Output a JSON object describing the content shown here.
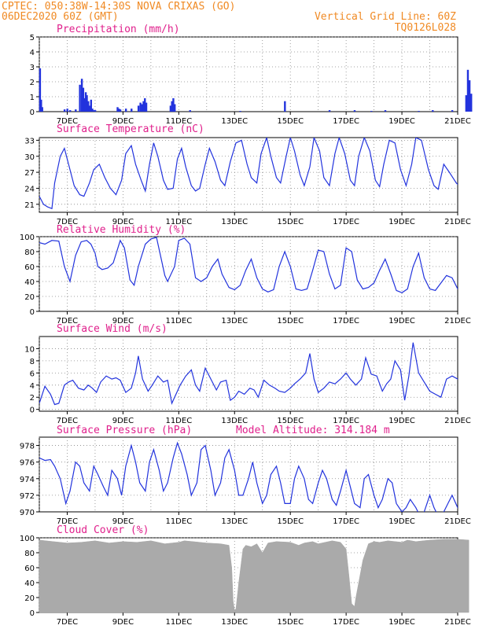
{
  "header": {
    "line1_left": "CPTEC:  050:38W-14:30S  NOVA CRIXAS (GO)",
    "line2_left": "06DEC2020 60Z (GMT)",
    "line1_right": "Vertical Grid Line: 60Z",
    "line2_right": "TQ0126L028"
  },
  "colors": {
    "header": "#f08a24",
    "title": "#e0208c",
    "series": "#2233dd",
    "cloud": "#aaaaaa",
    "grid": "#888888"
  },
  "x_axis": {
    "range": [
      6,
      21
    ],
    "tick_positions": [
      7,
      9,
      11,
      13,
      15,
      17,
      19,
      21
    ],
    "tick_labels": [
      "7DEC",
      "9DEC",
      "11DEC",
      "13DEC",
      "15DEC",
      "17DEC",
      "19DEC",
      "21DEC"
    ]
  },
  "chart_data": [
    {
      "type": "bar",
      "title": "Precipitation (mm/h)",
      "ylim": [
        0,
        5
      ],
      "yticks": [
        0,
        1,
        2,
        3,
        4,
        5
      ],
      "x": [
        6.02,
        6.06,
        6.1,
        6.9,
        7.0,
        7.1,
        7.3,
        7.45,
        7.52,
        7.57,
        7.62,
        7.66,
        7.7,
        7.75,
        7.8,
        7.85,
        7.9,
        7.95,
        8.0,
        8.8,
        8.85,
        8.9,
        9.1,
        9.3,
        9.55,
        9.62,
        9.68,
        9.73,
        9.78,
        9.83,
        10.7,
        10.75,
        10.8,
        10.85,
        11.4,
        13.2,
        14.8,
        16.4,
        17.3,
        17.9,
        18.4,
        19.6,
        20.1,
        20.8,
        21.3,
        21.36,
        21.42,
        21.48
      ],
      "values": [
        2.9,
        0.8,
        0.3,
        0.15,
        0.2,
        0.1,
        0.15,
        1.8,
        2.2,
        1.6,
        0.9,
        1.3,
        1.1,
        0.7,
        0.4,
        0.8,
        0.2,
        0.1,
        0.1,
        0.3,
        0.2,
        0.15,
        0.2,
        0.2,
        0.4,
        0.6,
        0.5,
        0.7,
        0.9,
        0.6,
        0.4,
        0.7,
        0.9,
        0.5,
        0.1,
        0.05,
        0.7,
        0.1,
        0.1,
        0.05,
        0.1,
        0.05,
        0.1,
        0.1,
        1.1,
        2.8,
        2.1,
        1.2
      ]
    },
    {
      "type": "line",
      "title": "Surface Temperature (nC)",
      "ylim": [
        19.5,
        33.5
      ],
      "yticks": [
        21,
        24,
        27,
        30,
        33
      ],
      "x": [
        6.0,
        6.15,
        6.3,
        6.45,
        6.55,
        6.75,
        6.9,
        7.05,
        7.25,
        7.45,
        7.6,
        7.8,
        7.95,
        8.15,
        8.35,
        8.55,
        8.75,
        8.95,
        9.1,
        9.3,
        9.45,
        9.65,
        9.8,
        9.95,
        10.1,
        10.25,
        10.45,
        10.6,
        10.8,
        10.95,
        11.1,
        11.25,
        11.45,
        11.6,
        11.75,
        11.95,
        12.1,
        12.3,
        12.5,
        12.65,
        12.85,
        13.05,
        13.25,
        13.45,
        13.6,
        13.8,
        13.95,
        14.15,
        14.3,
        14.5,
        14.65,
        14.85,
        15.0,
        15.15,
        15.35,
        15.5,
        15.7,
        15.85,
        16.05,
        16.2,
        16.4,
        16.6,
        16.75,
        16.95,
        17.15,
        17.3,
        17.45,
        17.65,
        17.85,
        18.05,
        18.2,
        18.35,
        18.55,
        18.75,
        18.95,
        19.15,
        19.35,
        19.5,
        19.7,
        19.95,
        20.15,
        20.3,
        20.5,
        20.7,
        20.95,
        21.15,
        21.4
      ],
      "values": [
        22.5,
        21.0,
        20.5,
        20.2,
        25.0,
        30.0,
        31.5,
        28.5,
        24.5,
        22.8,
        22.5,
        25.0,
        27.5,
        28.5,
        26.0,
        24.0,
        22.8,
        25.5,
        30.5,
        32.0,
        28.5,
        25.5,
        23.5,
        28.5,
        32.5,
        30.0,
        25.5,
        23.8,
        24.0,
        29.5,
        31.5,
        28.0,
        24.5,
        23.5,
        24.0,
        28.5,
        31.5,
        29.0,
        25.5,
        24.5,
        29.0,
        32.5,
        33.0,
        28.5,
        26.0,
        25.0,
        30.5,
        33.5,
        30.0,
        26.0,
        25.0,
        30.0,
        33.5,
        31.0,
        26.5,
        24.5,
        28.0,
        33.5,
        31.0,
        26.0,
        24.5,
        30.5,
        33.5,
        30.5,
        25.5,
        24.5,
        30.0,
        33.5,
        31.0,
        25.5,
        24.3,
        28.5,
        33.0,
        32.5,
        27.5,
        24.5,
        28.5,
        33.5,
        33.0,
        27.5,
        24.5,
        23.8,
        28.5,
        27.0,
        25.0,
        24.0,
        24.5
      ]
    },
    {
      "type": "line",
      "title": "Relative Humidity (%)",
      "ylim": [
        0,
        100
      ],
      "yticks": [
        0,
        20,
        40,
        60,
        80,
        100
      ],
      "x": [
        6.0,
        6.2,
        6.45,
        6.7,
        6.9,
        7.1,
        7.3,
        7.5,
        7.7,
        7.85,
        8.0,
        8.1,
        8.25,
        8.45,
        8.65,
        8.9,
        9.05,
        9.25,
        9.4,
        9.55,
        9.8,
        10.0,
        10.2,
        10.4,
        10.5,
        10.6,
        10.85,
        11.0,
        11.2,
        11.4,
        11.6,
        11.8,
        12.0,
        12.2,
        12.4,
        12.55,
        12.8,
        13.0,
        13.2,
        13.4,
        13.6,
        13.8,
        14.0,
        14.2,
        14.4,
        14.6,
        14.8,
        15.0,
        15.2,
        15.4,
        15.6,
        15.8,
        16.0,
        16.2,
        16.4,
        16.6,
        16.8,
        17.0,
        17.2,
        17.4,
        17.6,
        17.8,
        18.0,
        18.2,
        18.4,
        18.6,
        18.8,
        19.0,
        19.2,
        19.4,
        19.6,
        19.8,
        20.0,
        20.2,
        20.4,
        20.6,
        20.8,
        21.0,
        21.2,
        21.4
      ],
      "values": [
        92,
        90,
        95,
        94,
        60,
        40,
        75,
        93,
        95,
        90,
        78,
        60,
        56,
        58,
        65,
        95,
        85,
        42,
        35,
        60,
        90,
        97,
        99,
        65,
        48,
        40,
        60,
        95,
        98,
        90,
        45,
        40,
        45,
        60,
        70,
        50,
        32,
        29,
        35,
        55,
        70,
        45,
        30,
        26,
        29,
        60,
        80,
        60,
        30,
        28,
        30,
        55,
        82,
        80,
        50,
        30,
        35,
        85,
        80,
        42,
        30,
        32,
        38,
        55,
        70,
        50,
        28,
        25,
        30,
        60,
        78,
        45,
        30,
        28,
        38,
        48,
        45,
        30,
        28,
        80
      ]
    },
    {
      "type": "line",
      "title": "Surface Wind (m/s)",
      "ylim": [
        -0.3,
        12
      ],
      "yticks": [
        0,
        2,
        4,
        6,
        8,
        10
      ],
      "x": [
        6.0,
        6.2,
        6.4,
        6.55,
        6.7,
        6.9,
        7.05,
        7.2,
        7.4,
        7.6,
        7.75,
        7.9,
        8.05,
        8.2,
        8.4,
        8.6,
        8.75,
        8.9,
        9.1,
        9.3,
        9.45,
        9.55,
        9.7,
        9.9,
        10.05,
        10.25,
        10.45,
        10.6,
        10.75,
        10.9,
        11.05,
        11.25,
        11.45,
        11.6,
        11.75,
        11.95,
        12.15,
        12.35,
        12.5,
        12.7,
        12.85,
        13.0,
        13.15,
        13.35,
        13.55,
        13.7,
        13.85,
        14.05,
        14.25,
        14.45,
        14.6,
        14.8,
        15.0,
        15.15,
        15.35,
        15.55,
        15.7,
        15.85,
        16.0,
        16.2,
        16.4,
        16.6,
        16.8,
        17.0,
        17.15,
        17.35,
        17.55,
        17.7,
        17.9,
        18.1,
        18.3,
        18.45,
        18.6,
        18.75,
        18.95,
        19.1,
        19.25,
        19.4,
        19.6,
        19.8,
        20.0,
        20.2,
        20.4,
        20.6,
        20.8,
        21.0,
        21.2,
        21.4
      ],
      "values": [
        1.0,
        3.8,
        2.5,
        0.8,
        1.0,
        4.0,
        4.5,
        4.8,
        3.5,
        3.2,
        4.0,
        3.5,
        2.8,
        4.5,
        5.5,
        5.0,
        5.2,
        4.8,
        2.8,
        3.5,
        6.0,
        8.8,
        5.0,
        3.0,
        4.0,
        5.5,
        4.5,
        4.8,
        1.0,
        2.5,
        4.0,
        5.5,
        6.5,
        4.0,
        3.0,
        6.8,
        5.0,
        3.2,
        4.5,
        4.8,
        1.5,
        2.0,
        3.0,
        2.5,
        3.5,
        3.2,
        2.0,
        4.8,
        4.0,
        3.5,
        3.0,
        2.8,
        3.5,
        4.2,
        5.0,
        6.0,
        9.2,
        5.0,
        2.8,
        3.5,
        4.5,
        4.2,
        5.0,
        6.0,
        5.0,
        4.0,
        5.0,
        8.5,
        5.8,
        5.5,
        3.0,
        4.2,
        5.0,
        8.0,
        6.5,
        1.5,
        5.5,
        11.0,
        6.0,
        4.5,
        3.0,
        2.5,
        2.0,
        5.0,
        5.5,
        5.0,
        3.5,
        4.0
      ]
    },
    {
      "type": "line",
      "title": "Surface Pressure (hPa)",
      "annotation": "Model Altitude: 314.184 m",
      "ylim": [
        970,
        979
      ],
      "yticks": [
        970,
        972,
        974,
        976,
        978
      ],
      "x": [
        6.0,
        6.2,
        6.4,
        6.55,
        6.75,
        6.95,
        7.1,
        7.3,
        7.45,
        7.6,
        7.8,
        7.95,
        8.1,
        8.3,
        8.45,
        8.6,
        8.8,
        8.95,
        9.1,
        9.3,
        9.45,
        9.6,
        9.8,
        9.95,
        10.1,
        10.3,
        10.45,
        10.6,
        10.8,
        10.95,
        11.1,
        11.3,
        11.45,
        11.65,
        11.8,
        11.95,
        12.15,
        12.3,
        12.5,
        12.65,
        12.8,
        13.0,
        13.15,
        13.3,
        13.5,
        13.65,
        13.8,
        14.0,
        14.15,
        14.3,
        14.5,
        14.65,
        14.8,
        15.0,
        15.15,
        15.3,
        15.5,
        15.65,
        15.8,
        16.0,
        16.15,
        16.3,
        16.5,
        16.65,
        16.8,
        17.0,
        17.15,
        17.3,
        17.5,
        17.65,
        17.8,
        18.0,
        18.15,
        18.3,
        18.5,
        18.65,
        18.8,
        19.0,
        19.15,
        19.3,
        19.5,
        19.65,
        19.8,
        20.0,
        20.15,
        20.3,
        20.5,
        20.65,
        20.8,
        21.0,
        21.15,
        21.3,
        21.45
      ],
      "values": [
        976.5,
        976.2,
        976.3,
        975.5,
        974.0,
        971.0,
        972.5,
        976.0,
        975.5,
        973.5,
        972.5,
        975.5,
        974.5,
        973.0,
        972.0,
        975.0,
        974.0,
        972.0,
        975.5,
        978.0,
        976.0,
        973.5,
        972.5,
        976.0,
        977.5,
        975.0,
        972.5,
        973.5,
        976.5,
        978.3,
        977.0,
        974.5,
        972.0,
        973.5,
        977.5,
        978.0,
        975.0,
        972.0,
        973.5,
        976.5,
        977.5,
        975.0,
        972.0,
        972.0,
        974.0,
        976.0,
        973.5,
        971.0,
        972.0,
        974.5,
        975.5,
        973.5,
        971.0,
        971.0,
        974.0,
        975.5,
        974.0,
        971.5,
        971.0,
        973.5,
        975.0,
        974.0,
        971.5,
        970.8,
        972.5,
        975.0,
        973.0,
        971.0,
        970.5,
        974.0,
        974.5,
        972.0,
        970.5,
        971.5,
        974.0,
        973.5,
        971.0,
        970.0,
        970.5,
        971.5,
        970.5,
        969.5,
        970.0,
        972.0,
        970.5,
        969.5,
        970.0,
        971.0,
        972.0,
        970.5,
        969.5,
        970.5,
        972.0
      ]
    },
    {
      "type": "area",
      "title": "Cloud Cover (%)",
      "ylim": [
        0,
        100
      ],
      "yticks": [
        0,
        20,
        40,
        60,
        80,
        100
      ],
      "x": [
        6.0,
        6.5,
        7.0,
        7.5,
        8.0,
        8.5,
        9.0,
        9.5,
        10.0,
        10.5,
        11.0,
        11.2,
        11.5,
        12.0,
        12.5,
        12.8,
        12.9,
        12.95,
        13.0,
        13.05,
        13.15,
        13.3,
        13.4,
        13.6,
        13.8,
        14.0,
        14.2,
        14.5,
        15.0,
        15.3,
        15.5,
        15.8,
        16.0,
        16.5,
        16.8,
        17.0,
        17.1,
        17.2,
        17.3,
        17.35,
        17.45,
        17.6,
        17.8,
        18.0,
        18.2,
        18.5,
        19.0,
        19.2,
        19.5,
        20.0,
        20.5,
        21.0,
        21.4
      ],
      "values": [
        97,
        95,
        93,
        94,
        96,
        93,
        95,
        94,
        96,
        92,
        94,
        96,
        95,
        93,
        92,
        90,
        60,
        15,
        3,
        5,
        40,
        85,
        90,
        88,
        92,
        80,
        93,
        95,
        94,
        90,
        93,
        95,
        92,
        96,
        94,
        85,
        50,
        12,
        8,
        20,
        40,
        70,
        92,
        95,
        94,
        96,
        94,
        97,
        95,
        97,
        98,
        98,
        97
      ]
    }
  ]
}
